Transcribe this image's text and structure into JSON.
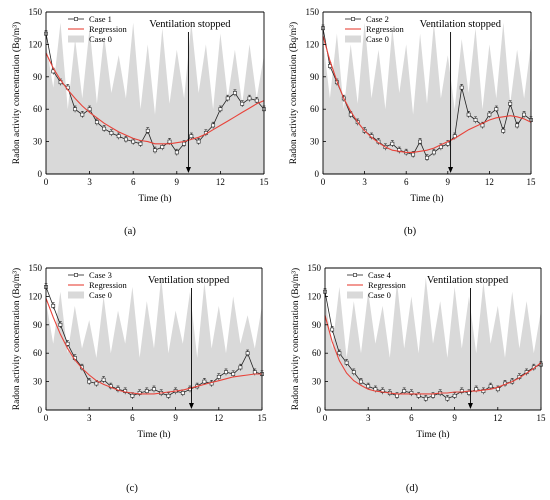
{
  "colors": {
    "case0_fill": "#d9d9d9",
    "regression": "#e8433a",
    "measured": "#222222",
    "axis": "#000000"
  },
  "chart_data": [
    {
      "type": "line",
      "caption": "(a)",
      "xlabel": "Time (h)",
      "ylabel": "Radon activity concentration (Bq/m³)",
      "xlim": [
        0,
        15
      ],
      "ylim": [
        0,
        150
      ],
      "xticks": [
        0,
        3,
        6,
        9,
        12,
        15
      ],
      "yticks": [
        0,
        30,
        60,
        90,
        120,
        150
      ],
      "legend": [
        "Case 1",
        "Regression",
        "Case 0"
      ],
      "legend_position": "top-left",
      "annotation": {
        "text": "Ventilation stopped",
        "x": 9.8
      },
      "series": [
        {
          "name": "Case 0",
          "style": "area",
          "x": [
            0,
            0.5,
            1,
            1.5,
            2,
            2.5,
            3,
            3.5,
            4,
            4.5,
            5,
            5.5,
            6,
            6.5,
            7,
            7.5,
            8,
            8.5,
            9,
            9.5,
            10,
            10.5,
            11,
            11.5,
            12,
            12.5,
            13,
            13.5,
            14,
            14.5,
            15
          ],
          "values": [
            120,
            80,
            140,
            60,
            125,
            70,
            135,
            65,
            128,
            75,
            110,
            70,
            140,
            60,
            120,
            55,
            135,
            65,
            115,
            70,
            140,
            75,
            120,
            60,
            130,
            70,
            115,
            65,
            120,
            70,
            110
          ]
        },
        {
          "name": "Case 1",
          "style": "markers-line",
          "x": [
            0,
            0.5,
            1,
            1.5,
            2,
            2.5,
            3,
            3.5,
            4,
            4.5,
            5,
            5.5,
            6,
            6.5,
            7,
            7.5,
            8,
            8.5,
            9,
            9.5,
            10,
            10.5,
            11,
            11.5,
            12,
            12.5,
            13,
            13.5,
            14,
            14.5,
            15
          ],
          "values": [
            130,
            95,
            85,
            80,
            60,
            55,
            60,
            48,
            42,
            38,
            35,
            32,
            30,
            28,
            40,
            22,
            25,
            30,
            20,
            28,
            35,
            30,
            38,
            45,
            60,
            70,
            75,
            65,
            70,
            68,
            60
          ]
        },
        {
          "name": "Regression",
          "style": "line",
          "x": [
            0,
            0.5,
            1,
            1.5,
            2,
            2.5,
            3,
            3.5,
            4,
            4.5,
            5,
            5.5,
            6,
            6.5,
            7,
            7.5,
            8,
            8.5,
            9,
            9.5,
            10,
            10.5,
            11,
            11.5,
            12,
            12.5,
            13,
            13.5,
            14,
            14.5,
            15
          ],
          "values": [
            112,
            98,
            87,
            78,
            70,
            63,
            57,
            52,
            47,
            43,
            39,
            36,
            33,
            31,
            30,
            28,
            28,
            28,
            29,
            30,
            32,
            34,
            37,
            41,
            45,
            49,
            53,
            57,
            61,
            65,
            68
          ]
        }
      ]
    },
    {
      "type": "line",
      "caption": "(b)",
      "xlabel": "Time (h)",
      "ylabel": "Radon activity concentration (Bq/m³)",
      "xlim": [
        0,
        15
      ],
      "ylim": [
        0,
        150
      ],
      "xticks": [
        0,
        3,
        6,
        9,
        12,
        15
      ],
      "yticks": [
        0,
        30,
        60,
        90,
        120,
        150
      ],
      "legend": [
        "Case 2",
        "Regression",
        "Case 0"
      ],
      "legend_position": "top-left",
      "annotation": {
        "text": "Ventilation stopped",
        "x": 9.2
      },
      "series": [
        {
          "name": "Case 0",
          "style": "area",
          "x": [
            0,
            0.5,
            1,
            1.5,
            2,
            2.5,
            3,
            3.5,
            4,
            4.5,
            5,
            5.5,
            6,
            6.5,
            7,
            7.5,
            8,
            8.5,
            9,
            9.5,
            10,
            10.5,
            11,
            11.5,
            12,
            12.5,
            13,
            13.5,
            14,
            14.5,
            15
          ],
          "values": [
            125,
            70,
            130,
            60,
            120,
            65,
            140,
            70,
            115,
            60,
            135,
            75,
            120,
            55,
            130,
            65,
            140,
            70,
            110,
            60,
            125,
            75,
            135,
            60,
            120,
            70,
            140,
            65,
            115,
            70,
            120
          ]
        },
        {
          "name": "Case 2",
          "style": "markers-line",
          "x": [
            0,
            0.5,
            1,
            1.5,
            2,
            2.5,
            3,
            3.5,
            4,
            4.5,
            5,
            5.5,
            6,
            6.5,
            7,
            7.5,
            8,
            8.5,
            9,
            9.5,
            10,
            10.5,
            11,
            11.5,
            12,
            12.5,
            13,
            13.5,
            14,
            14.5,
            15
          ],
          "values": [
            135,
            100,
            85,
            70,
            55,
            48,
            40,
            35,
            30,
            25,
            28,
            22,
            20,
            18,
            30,
            15,
            20,
            25,
            28,
            35,
            80,
            55,
            50,
            45,
            55,
            60,
            40,
            65,
            45,
            55,
            50
          ]
        },
        {
          "name": "Regression",
          "style": "line",
          "x": [
            0,
            0.5,
            1,
            1.5,
            2,
            2.5,
            3,
            3.5,
            4,
            4.5,
            5,
            5.5,
            6,
            6.5,
            7,
            7.5,
            8,
            8.5,
            9,
            9.5,
            10,
            10.5,
            11,
            11.5,
            12,
            12.5,
            13,
            13.5,
            14,
            14.5,
            15
          ],
          "values": [
            128,
            105,
            86,
            70,
            58,
            48,
            40,
            34,
            29,
            25,
            22,
            21,
            20,
            20,
            21,
            22,
            24,
            27,
            30,
            33,
            37,
            41,
            44,
            47,
            50,
            52,
            53,
            54,
            53,
            51,
            48
          ]
        }
      ]
    },
    {
      "type": "line",
      "caption": "(c)",
      "xlabel": "Time (h)",
      "ylabel": "Radon activity concentration (Bq/m³)",
      "xlim": [
        0,
        15
      ],
      "ylim": [
        0,
        150
      ],
      "xticks": [
        0,
        3,
        6,
        9,
        12,
        15
      ],
      "yticks": [
        0,
        30,
        60,
        90,
        120,
        150
      ],
      "legend": [
        "Case 3",
        "Regression",
        "Case 0"
      ],
      "legend_position": "top-left",
      "annotation": {
        "text": "Ventilation stopped",
        "x": 10.1
      },
      "series": [
        {
          "name": "Case 0",
          "style": "area",
          "x": [
            0,
            0.5,
            1,
            1.5,
            2,
            2.5,
            3,
            3.5,
            4,
            4.5,
            5,
            5.5,
            6,
            6.5,
            7,
            7.5,
            8,
            8.5,
            9,
            9.5,
            10,
            10.5,
            11,
            11.5,
            12,
            12.5,
            13,
            13.5,
            14,
            14.5,
            15
          ],
          "values": [
            115,
            70,
            125,
            60,
            110,
            65,
            95,
            55,
            120,
            60,
            105,
            70,
            130,
            55,
            115,
            65,
            140,
            60,
            105,
            70,
            125,
            55,
            135,
            65,
            110,
            60,
            120,
            70,
            100,
            65,
            110
          ]
        },
        {
          "name": "Case 3",
          "style": "markers-line",
          "x": [
            0,
            0.5,
            1,
            1.5,
            2,
            2.5,
            3,
            3.5,
            4,
            4.5,
            5,
            5.5,
            6,
            6.5,
            7,
            7.5,
            8,
            8.5,
            9,
            9.5,
            10,
            10.5,
            11,
            11.5,
            12,
            12.5,
            13,
            13.5,
            14,
            14.5,
            15
          ],
          "values": [
            130,
            110,
            90,
            70,
            55,
            45,
            30,
            28,
            32,
            25,
            22,
            20,
            15,
            18,
            20,
            22,
            18,
            15,
            20,
            18,
            22,
            25,
            30,
            28,
            35,
            40,
            38,
            45,
            60,
            40,
            38
          ]
        },
        {
          "name": "Regression",
          "style": "line",
          "x": [
            0,
            0.5,
            1,
            1.5,
            2,
            2.5,
            3,
            3.5,
            4,
            4.5,
            5,
            5.5,
            6,
            6.5,
            7,
            7.5,
            8,
            8.5,
            9,
            9.5,
            10,
            10.5,
            11,
            11.5,
            12,
            12.5,
            13,
            13.5,
            14,
            14.5,
            15
          ],
          "values": [
            118,
            98,
            80,
            65,
            53,
            44,
            37,
            31,
            27,
            24,
            21,
            19,
            18,
            17,
            17,
            17,
            18,
            19,
            20,
            21,
            23,
            25,
            27,
            29,
            31,
            33,
            35,
            36,
            37,
            38,
            38
          ]
        }
      ]
    },
    {
      "type": "line",
      "caption": "(d)",
      "xlabel": "Time (h)",
      "ylabel": "Radon activity concentration (Bq/m³)",
      "xlim": [
        0,
        15
      ],
      "ylim": [
        0,
        150
      ],
      "xticks": [
        0,
        3,
        6,
        9,
        12,
        15
      ],
      "yticks": [
        0,
        30,
        60,
        90,
        120,
        150
      ],
      "legend": [
        "Case 4",
        "Regression",
        "Case 0"
      ],
      "legend_position": "top-left",
      "annotation": {
        "text": "Ventilation stopped",
        "x": 10.1
      },
      "series": [
        {
          "name": "Case 0",
          "style": "area",
          "x": [
            0,
            0.5,
            1,
            1.5,
            2,
            2.5,
            3,
            3.5,
            4,
            4.5,
            5,
            5.5,
            6,
            6.5,
            7,
            7.5,
            8,
            8.5,
            9,
            9.5,
            10,
            10.5,
            11,
            11.5,
            12,
            12.5,
            13,
            13.5,
            14,
            14.5,
            15
          ],
          "values": [
            120,
            65,
            130,
            55,
            115,
            60,
            125,
            70,
            110,
            55,
            135,
            65,
            120,
            60,
            140,
            70,
            115,
            55,
            130,
            65,
            120,
            60,
            135,
            70,
            110,
            55,
            125,
            65,
            115,
            60,
            105
          ]
        },
        {
          "name": "Case 4",
          "style": "markers-line",
          "x": [
            0,
            0.5,
            1,
            1.5,
            2,
            2.5,
            3,
            3.5,
            4,
            4.5,
            5,
            5.5,
            6,
            6.5,
            7,
            7.5,
            8,
            8.5,
            9,
            9.5,
            10,
            10.5,
            11,
            11.5,
            12,
            12.5,
            13,
            13.5,
            14,
            14.5,
            15
          ],
          "values": [
            125,
            85,
            60,
            50,
            40,
            30,
            25,
            22,
            20,
            18,
            15,
            20,
            18,
            15,
            12,
            15,
            18,
            12,
            15,
            20,
            18,
            22,
            20,
            25,
            22,
            28,
            30,
            35,
            40,
            45,
            48
          ]
        },
        {
          "name": "Regression",
          "style": "line",
          "x": [
            0,
            0.5,
            1,
            1.5,
            2,
            2.5,
            3,
            3.5,
            4,
            4.5,
            5,
            5.5,
            6,
            6.5,
            7,
            7.5,
            8,
            8.5,
            9,
            9.5,
            10,
            10.5,
            11,
            11.5,
            12,
            12.5,
            13,
            13.5,
            14,
            14.5,
            15
          ],
          "values": [
            100,
            72,
            52,
            39,
            31,
            26,
            22,
            20,
            19,
            18,
            17,
            17,
            17,
            17,
            17,
            17,
            18,
            18,
            19,
            19,
            20,
            20,
            21,
            22,
            24,
            27,
            30,
            34,
            39,
            44,
            50
          ]
        }
      ]
    }
  ]
}
